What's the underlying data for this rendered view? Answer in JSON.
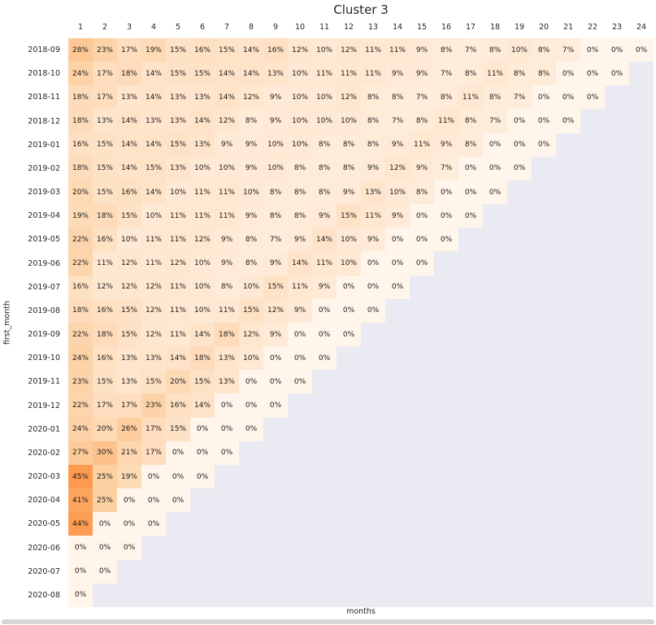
{
  "chart_data": {
    "type": "heatmap",
    "title": "Cluster 3",
    "xlabel": "months",
    "ylabel": "first_month",
    "value_suffix": "%",
    "n_cols": 24,
    "x_tick_labels": [
      "1",
      "2",
      "3",
      "4",
      "5",
      "6",
      "7",
      "8",
      "9",
      "10",
      "11",
      "12",
      "13",
      "14",
      "15",
      "16",
      "17",
      "18",
      "19",
      "20",
      "21",
      "22",
      "23",
      "24"
    ],
    "missing_color": "#eaeaf2",
    "annotation_color": "#1a1a1a",
    "colormap": {
      "name": "Oranges",
      "stops": [
        "#fff5eb",
        "#fee6ce",
        "#fdd0a2",
        "#fdae6b",
        "#fd8d3c",
        "#f16913",
        "#d94801",
        "#a63603",
        "#7f2704"
      ],
      "domain": [
        0,
        100
      ]
    },
    "rows": [
      {
        "label": "2018-09",
        "values": [
          28,
          23,
          17,
          19,
          15,
          16,
          15,
          14,
          16,
          12,
          10,
          12,
          11,
          11,
          9,
          8,
          7,
          8,
          10,
          8,
          7,
          0,
          0,
          0
        ]
      },
      {
        "label": "2018-10",
        "values": [
          24,
          17,
          18,
          14,
          15,
          15,
          14,
          14,
          13,
          10,
          11,
          11,
          11,
          9,
          9,
          7,
          8,
          11,
          8,
          8,
          0,
          0,
          0
        ]
      },
      {
        "label": "2018-11",
        "values": [
          18,
          17,
          13,
          14,
          13,
          13,
          14,
          12,
          9,
          10,
          10,
          12,
          8,
          8,
          7,
          8,
          11,
          8,
          7,
          0,
          0,
          0
        ]
      },
      {
        "label": "2018-12",
        "values": [
          18,
          13,
          14,
          13,
          13,
          14,
          12,
          8,
          9,
          10,
          10,
          10,
          8,
          7,
          8,
          11,
          8,
          7,
          0,
          0,
          0
        ]
      },
      {
        "label": "2019-01",
        "values": [
          16,
          15,
          14,
          14,
          15,
          13,
          9,
          9,
          10,
          10,
          8,
          8,
          8,
          9,
          11,
          9,
          8,
          0,
          0,
          0
        ]
      },
      {
        "label": "2019-02",
        "values": [
          18,
          15,
          14,
          15,
          13,
          10,
          10,
          9,
          10,
          8,
          8,
          8,
          9,
          12,
          9,
          7,
          0,
          0,
          0
        ]
      },
      {
        "label": "2019-03",
        "values": [
          20,
          15,
          16,
          14,
          10,
          11,
          11,
          10,
          8,
          8,
          8,
          9,
          13,
          10,
          8,
          0,
          0,
          0
        ]
      },
      {
        "label": "2019-04",
        "values": [
          19,
          18,
          15,
          10,
          11,
          11,
          11,
          9,
          8,
          8,
          9,
          15,
          11,
          9,
          0,
          0,
          0
        ]
      },
      {
        "label": "2019-05",
        "values": [
          22,
          16,
          10,
          11,
          11,
          12,
          9,
          8,
          7,
          9,
          14,
          10,
          9,
          0,
          0,
          0
        ]
      },
      {
        "label": "2019-06",
        "values": [
          22,
          11,
          12,
          11,
          12,
          10,
          9,
          8,
          9,
          14,
          11,
          10,
          0,
          0,
          0
        ]
      },
      {
        "label": "2019-07",
        "values": [
          16,
          12,
          12,
          12,
          11,
          10,
          8,
          10,
          15,
          11,
          9,
          0,
          0,
          0
        ]
      },
      {
        "label": "2019-08",
        "values": [
          18,
          16,
          15,
          12,
          11,
          10,
          11,
          15,
          12,
          9,
          0,
          0,
          0
        ]
      },
      {
        "label": "2019-09",
        "values": [
          22,
          18,
          15,
          12,
          11,
          14,
          18,
          12,
          9,
          0,
          0,
          0
        ]
      },
      {
        "label": "2019-10",
        "values": [
          24,
          16,
          13,
          13,
          14,
          18,
          13,
          10,
          0,
          0,
          0
        ]
      },
      {
        "label": "2019-11",
        "values": [
          23,
          15,
          13,
          15,
          20,
          15,
          13,
          0,
          0,
          0
        ]
      },
      {
        "label": "2019-12",
        "values": [
          22,
          17,
          17,
          23,
          16,
          14,
          0,
          0,
          0
        ]
      },
      {
        "label": "2020-01",
        "values": [
          24,
          20,
          26,
          17,
          15,
          0,
          0,
          0
        ]
      },
      {
        "label": "2020-02",
        "values": [
          27,
          30,
          21,
          17,
          0,
          0,
          0
        ]
      },
      {
        "label": "2020-03",
        "values": [
          45,
          25,
          19,
          0,
          0,
          0
        ]
      },
      {
        "label": "2020-04",
        "values": [
          41,
          25,
          0,
          0,
          0
        ]
      },
      {
        "label": "2020-05",
        "values": [
          44,
          0,
          0,
          0
        ]
      },
      {
        "label": "2020-06",
        "values": [
          0,
          0,
          0
        ]
      },
      {
        "label": "2020-07",
        "values": [
          0,
          0
        ]
      },
      {
        "label": "2020-08",
        "values": [
          0
        ]
      }
    ]
  }
}
